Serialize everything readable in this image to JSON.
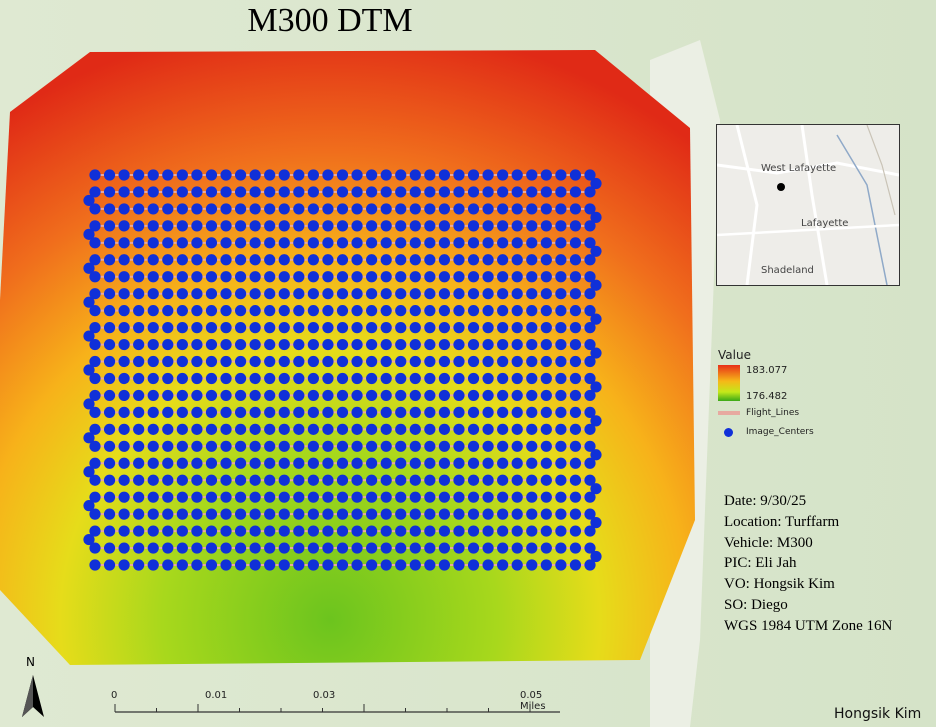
{
  "title": "M300 DTM",
  "inset_map": {
    "labels": [
      "West Lafayette",
      "Lafayette",
      "Shadeland"
    ]
  },
  "legend": {
    "header": "Value",
    "max_value": "183.077",
    "min_value": "176.482",
    "flight_lines_label": "Flight_Lines",
    "image_centers_label": "Image_Centers"
  },
  "info": [
    "Date: 9/30/25",
    "Location: Turffarm",
    "Vehicle: M300",
    "PIC: Eli Jah",
    "VO: Hongsik Kim",
    "SO: Diego",
    "WGS 1984 UTM Zone 16N"
  ],
  "north_label": "N",
  "scale_bar": {
    "ticks": [
      "0",
      "0.01",
      "0.03",
      "0.05 Miles"
    ],
    "tick_values": [
      0,
      0.01,
      0.03,
      0.05
    ]
  },
  "author": "Hongsik Kim",
  "colors": {
    "image_center": "#1030d8",
    "flight_line": "#e7a9a0",
    "high": "#e83018",
    "low": "#3aa818"
  },
  "image_centers": {
    "rows": 24,
    "per_row": 35
  }
}
